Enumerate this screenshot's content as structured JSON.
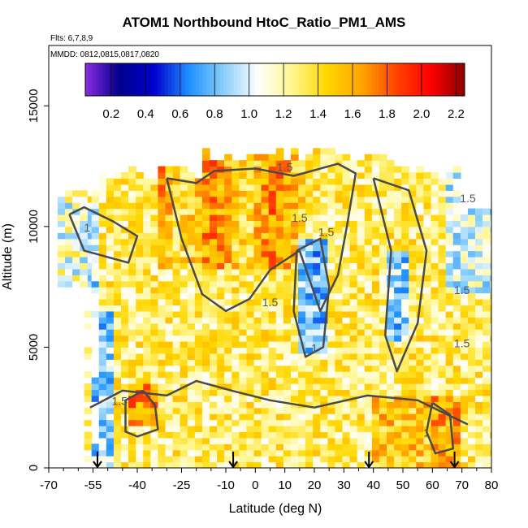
{
  "chart_data": {
    "type": "heatmap",
    "title": "ATOM1 Northbound HtoC_Ratio_PM1_AMS",
    "flights_label": "Flts: 6,7,8,9",
    "dates_label": "MMDD: 0812,0815,0817,0820",
    "xlabel": "Latitude (deg N)",
    "ylabel": "Altitude (m)",
    "xlim": [
      -70,
      80
    ],
    "ylim": [
      0,
      17500
    ],
    "x_ticks": [
      "-70",
      "-55",
      "-40",
      "-25",
      "-10",
      "0",
      "10",
      "20",
      "30",
      "40",
      "50",
      "60",
      "70",
      "80"
    ],
    "x_tick_values": [
      -70,
      -55,
      -40,
      -25,
      -10,
      0,
      10,
      20,
      30,
      40,
      50,
      60,
      70,
      80
    ],
    "y_ticks": [
      "0",
      "5000",
      "10000",
      "15000"
    ],
    "y_tick_values": [
      0,
      5000,
      10000,
      15000
    ],
    "colorbar": {
      "range": [
        0.05,
        2.25
      ],
      "ticks": [
        "0.2",
        "0.4",
        "0.6",
        "0.8",
        "1.0",
        "1.2",
        "1.4",
        "1.6",
        "1.8",
        "2.0",
        "2.2"
      ],
      "tick_values": [
        0.2,
        0.4,
        0.6,
        0.8,
        1.0,
        1.2,
        1.4,
        1.6,
        1.8,
        2.0,
        2.2
      ],
      "colors": [
        "#8a2be2",
        "#00008b",
        "#0000cd",
        "#1e90ff",
        "#87cefa",
        "#ffffff",
        "#fff68f",
        "#ffd700",
        "#ffa500",
        "#ff4500",
        "#ff0000",
        "#8b0000"
      ]
    },
    "contour_levels": [
      1,
      1.5
    ],
    "contour_labels": [
      "1.5",
      "1.5",
      "1.5",
      "1.5",
      "1.5",
      "1.5",
      "1.5",
      "1",
      "1",
      "1",
      "1.5"
    ],
    "flight_marker_latitudes": [
      -53.5,
      -7.5,
      38.5,
      67.5
    ],
    "grid": false
  }
}
